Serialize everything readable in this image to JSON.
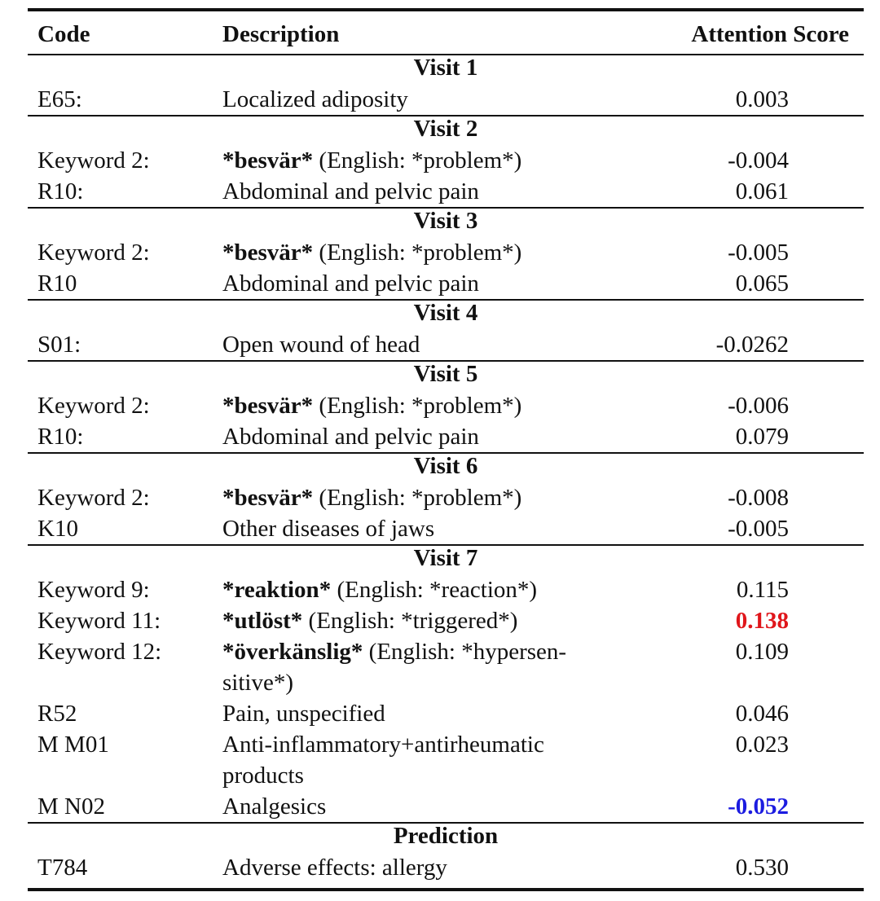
{
  "headers": {
    "code": "Code",
    "description": "Description",
    "score": "Attention Score"
  },
  "sections": [
    {
      "title": "Visit 1",
      "rows": [
        {
          "code": "E65:",
          "desc": "Localized adiposity",
          "score": "0.003"
        }
      ]
    },
    {
      "title": "Visit 2",
      "rows": [
        {
          "code": "Keyword 2:",
          "kw": "*besvär*",
          "desc": " (English: *problem*)",
          "score": "-0.004"
        },
        {
          "code": "R10:",
          "desc": "Abdominal and pelvic pain",
          "score": "0.061"
        }
      ]
    },
    {
      "title": "Visit 3",
      "rows": [
        {
          "code": "Keyword 2:",
          "kw": "*besvär*",
          "desc": " (English: *problem*)",
          "score": "-0.005"
        },
        {
          "code": "R10",
          "desc": "Abdominal and pelvic pain",
          "score": "0.065"
        }
      ]
    },
    {
      "title": "Visit 4",
      "rows": [
        {
          "code": "S01:",
          "desc": "Open wound of head",
          "score": "-0.0262"
        }
      ]
    },
    {
      "title": "Visit 5",
      "rows": [
        {
          "code": "Keyword 2:",
          "kw": "*besvär*",
          "desc": " (English: *problem*)",
          "score": "-0.006"
        },
        {
          "code": "R10:",
          "desc": "Abdominal and pelvic pain",
          "score": "0.079"
        }
      ]
    },
    {
      "title": "Visit 6",
      "rows": [
        {
          "code": "Keyword 2:",
          "kw": "*besvär*",
          "desc": " (English: *problem*)",
          "score": "-0.008"
        },
        {
          "code": "K10",
          "desc": "Other diseases of jaws",
          "score": "-0.005"
        }
      ]
    },
    {
      "title": "Visit 7",
      "rows": [
        {
          "code": "Keyword 9:",
          "kw": "*reaktion*",
          "desc": " (English: *reaction*)",
          "score": "0.115"
        },
        {
          "code": "Keyword 11:",
          "kw": "*utlöst*",
          "desc": " (English: *triggered*)",
          "score": "0.138",
          "highlight": "red"
        },
        {
          "code": "Keyword 12:",
          "kw": "*överkänslig*",
          "desc": " (English: *hypersen-sitive*)",
          "score": "0.109",
          "tall": true
        },
        {
          "code": "R52",
          "desc": "Pain, unspecified",
          "score": "0.046"
        },
        {
          "code": "M M01",
          "desc": "Anti-inflammatory+antirheumatic products",
          "score": "0.023",
          "tall": true
        },
        {
          "code": "M N02",
          "desc": "Analgesics",
          "score": "-0.052",
          "highlight": "blue"
        }
      ]
    },
    {
      "title": "Prediction",
      "rows": [
        {
          "code": "T784",
          "desc": "Adverse effects: allergy",
          "score": "0.530"
        }
      ]
    }
  ],
  "colors": {
    "highlight_red": "#e0161b",
    "highlight_blue": "#1c1ce0"
  }
}
